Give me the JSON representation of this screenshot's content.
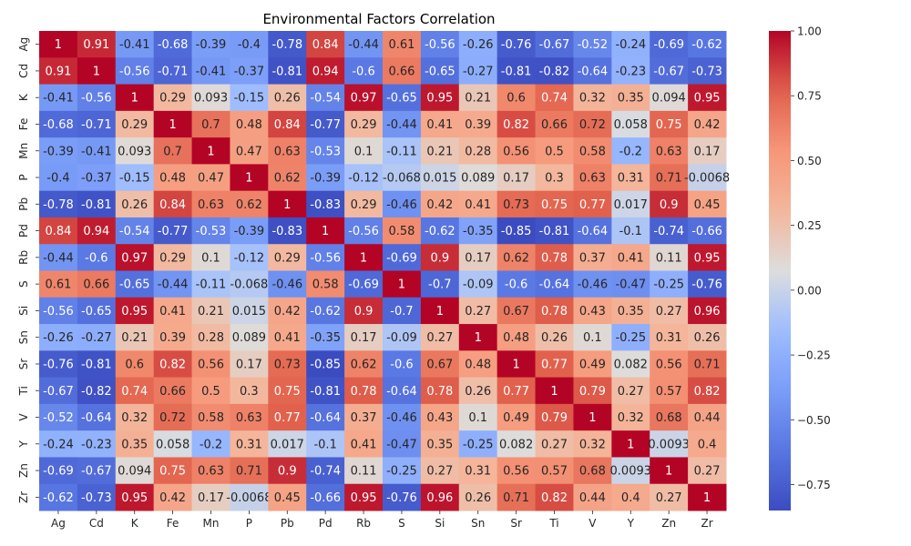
{
  "chart_data": {
    "type": "heatmap",
    "title": "Environmental Factors Correlation",
    "colormap": "coolwarm",
    "vmin": -0.85,
    "vmax": 1.0,
    "colorbar_ticks": [
      {
        "value": 1.0,
        "label": "1.00"
      },
      {
        "value": 0.75,
        "label": "0.75"
      },
      {
        "value": 0.5,
        "label": "0.50"
      },
      {
        "value": 0.25,
        "label": "0.25"
      },
      {
        "value": 0.0,
        "label": "0.00"
      },
      {
        "value": -0.25,
        "label": "−0.25"
      },
      {
        "value": -0.5,
        "label": "−0.50"
      },
      {
        "value": -0.75,
        "label": "−0.75"
      }
    ],
    "x_labels": [
      "Ag",
      "Cd",
      "K",
      "Fe",
      "Mn",
      "P",
      "Pb",
      "Pd",
      "Rb",
      "S",
      "Si",
      "Sn",
      "Sr",
      "Ti",
      "V",
      "Y",
      "Zn",
      "Zr"
    ],
    "y_labels": [
      "Ag",
      "Cd",
      "K",
      "Fe",
      "Mn",
      "P",
      "Pb",
      "Pd",
      "Rb",
      "S",
      "Si",
      "Sn",
      "Sr",
      "Ti",
      "V",
      "Y",
      "Zn",
      "Zr"
    ],
    "values": [
      [
        1,
        0.91,
        -0.41,
        -0.68,
        -0.39,
        -0.4,
        -0.78,
        0.84,
        -0.44,
        0.61,
        -0.56,
        -0.26,
        -0.76,
        -0.67,
        -0.52,
        -0.24,
        -0.69,
        -0.62
      ],
      [
        0.91,
        1,
        -0.56,
        -0.71,
        -0.41,
        -0.37,
        -0.81,
        0.94,
        -0.6,
        0.66,
        -0.65,
        -0.27,
        -0.81,
        -0.82,
        -0.64,
        -0.23,
        -0.67,
        -0.73
      ],
      [
        -0.41,
        -0.56,
        1,
        0.29,
        0.093,
        -0.15,
        0.26,
        -0.54,
        0.97,
        -0.65,
        0.95,
        0.21,
        0.6,
        0.74,
        0.32,
        0.35,
        0.094,
        0.95
      ],
      [
        -0.68,
        -0.71,
        0.29,
        1,
        0.7,
        0.48,
        0.84,
        -0.77,
        0.29,
        -0.44,
        0.41,
        0.39,
        0.82,
        0.66,
        0.72,
        0.058,
        0.75,
        0.42
      ],
      [
        -0.39,
        -0.41,
        0.093,
        0.7,
        1,
        0.47,
        0.63,
        -0.53,
        0.1,
        -0.11,
        0.21,
        0.28,
        0.56,
        0.5,
        0.58,
        -0.2,
        0.63,
        0.17
      ],
      [
        -0.4,
        -0.37,
        -0.15,
        0.48,
        0.47,
        1,
        0.62,
        -0.39,
        -0.12,
        -0.068,
        0.015,
        0.089,
        0.17,
        0.3,
        0.63,
        0.31,
        0.71,
        -0.0068
      ],
      [
        -0.78,
        -0.81,
        0.26,
        0.84,
        0.63,
        0.62,
        1,
        -0.83,
        0.29,
        -0.46,
        0.42,
        0.41,
        0.73,
        0.75,
        0.77,
        0.017,
        0.9,
        0.45
      ],
      [
        0.84,
        0.94,
        -0.54,
        -0.77,
        -0.53,
        -0.39,
        -0.83,
        1,
        -0.56,
        0.58,
        -0.62,
        -0.35,
        -0.85,
        -0.81,
        -0.64,
        -0.1,
        -0.74,
        -0.66
      ],
      [
        -0.44,
        -0.6,
        0.97,
        0.29,
        0.1,
        -0.12,
        0.29,
        -0.56,
        1,
        -0.69,
        0.9,
        0.17,
        0.62,
        0.78,
        0.37,
        0.41,
        0.11,
        0.95
      ],
      [
        0.61,
        0.66,
        -0.65,
        -0.44,
        -0.11,
        -0.068,
        -0.46,
        0.58,
        -0.69,
        1,
        -0.7,
        -0.09,
        -0.6,
        -0.64,
        -0.46,
        -0.47,
        -0.25,
        -0.76
      ],
      [
        -0.56,
        -0.65,
        0.95,
        0.41,
        0.21,
        0.015,
        0.42,
        -0.62,
        0.9,
        -0.7,
        1,
        0.27,
        0.67,
        0.78,
        0.43,
        0.35,
        0.27,
        0.96
      ],
      [
        -0.26,
        -0.27,
        0.21,
        0.39,
        0.28,
        0.089,
        0.41,
        -0.35,
        0.17,
        -0.09,
        0.27,
        1,
        0.48,
        0.26,
        0.1,
        -0.25,
        0.31,
        0.26
      ],
      [
        -0.76,
        -0.81,
        0.6,
        0.82,
        0.56,
        0.17,
        0.73,
        -0.85,
        0.62,
        -0.6,
        0.67,
        0.48,
        1,
        0.77,
        0.49,
        0.082,
        0.56,
        0.71
      ],
      [
        -0.67,
        -0.82,
        0.74,
        0.66,
        0.5,
        0.3,
        0.75,
        -0.81,
        0.78,
        -0.64,
        0.78,
        0.26,
        0.77,
        1,
        0.79,
        0.27,
        0.57,
        0.82
      ],
      [
        -0.52,
        -0.64,
        0.32,
        0.72,
        0.58,
        0.63,
        0.77,
        -0.64,
        0.37,
        -0.46,
        0.43,
        0.1,
        0.49,
        0.79,
        1,
        0.32,
        0.68,
        0.44
      ],
      [
        -0.24,
        -0.23,
        0.35,
        0.058,
        -0.2,
        0.31,
        0.017,
        -0.1,
        0.41,
        -0.47,
        0.35,
        -0.25,
        0.082,
        0.27,
        0.32,
        1,
        0.0093,
        0.4
      ],
      [
        -0.69,
        -0.67,
        0.094,
        0.75,
        0.63,
        0.71,
        0.9,
        -0.74,
        0.11,
        -0.25,
        0.27,
        0.31,
        0.56,
        0.57,
        0.68,
        0.0093,
        1,
        0.27
      ],
      [
        -0.62,
        -0.73,
        0.95,
        0.42,
        0.17,
        -0.0068,
        0.45,
        -0.66,
        0.95,
        -0.76,
        0.96,
        0.26,
        0.71,
        0.82,
        0.44,
        0.4,
        0.27,
        1
      ]
    ]
  }
}
